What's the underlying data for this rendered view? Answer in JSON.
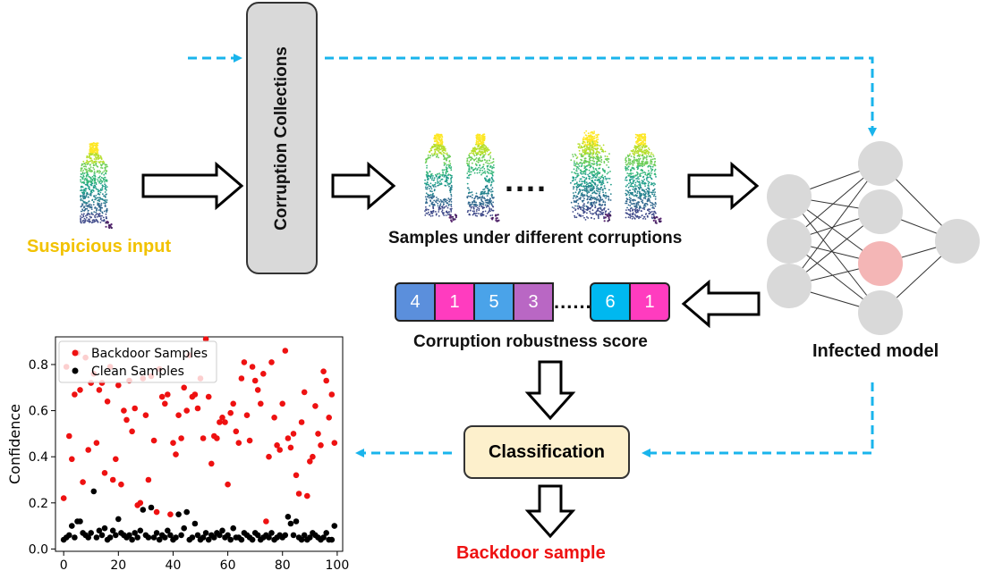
{
  "labels": {
    "suspicious_input": "Suspicious input",
    "corruption_collections": "Corruption Collections",
    "samples_caption": "Samples under different corruptions",
    "infected_model": "Infected model",
    "robustness_caption": "Corruption robustness score",
    "classification": "Classification",
    "backdoor_sample": "Backdoor sample",
    "ellipsis_big": "....",
    "ellipsis_small": "......"
  },
  "scores": [
    {
      "value": "4",
      "color": "#5b8fdc"
    },
    {
      "value": "1",
      "color": "#ff3cbf"
    },
    {
      "value": "5",
      "color": "#4aa3e9"
    },
    {
      "value": "3",
      "color": "#b967c4"
    },
    {
      "value": "6",
      "color": "#00b8f0"
    },
    {
      "value": "1",
      "color": "#ff3cbf"
    }
  ],
  "colors": {
    "suspicious": "#f2c200",
    "backdoor": "#ee1111",
    "dashed_arrow": "#19b4ec",
    "neuron": "#d9d9d9",
    "neuron_infected": "#f4b6b6"
  },
  "chart_data": {
    "type": "scatter",
    "ylabel": "Confidence",
    "xlabel": "",
    "xlim": [
      -3,
      102
    ],
    "ylim": [
      -0.01,
      0.92
    ],
    "xticks": [
      0,
      20,
      40,
      60,
      80,
      100
    ],
    "yticks": [
      0.0,
      0.2,
      0.4,
      0.6,
      0.8
    ],
    "legend_position": "top-left",
    "series": [
      {
        "name": "Backdoor Samples",
        "color": "#ee1111",
        "x": [
          0,
          1,
          2,
          3,
          4,
          5,
          6,
          7,
          8,
          9,
          10,
          11,
          12,
          13,
          14,
          15,
          16,
          17,
          18,
          19,
          20,
          21,
          22,
          23,
          24,
          25,
          26,
          27,
          28,
          29,
          30,
          31,
          32,
          33,
          34,
          35,
          36,
          37,
          38,
          39,
          40,
          41,
          42,
          43,
          44,
          45,
          46,
          47,
          48,
          49,
          50,
          51,
          52,
          53,
          54,
          55,
          56,
          57,
          58,
          59,
          60,
          61,
          62,
          63,
          64,
          65,
          66,
          67,
          68,
          69,
          70,
          71,
          72,
          73,
          74,
          75,
          76,
          77,
          78,
          79,
          80,
          81,
          82,
          83,
          84,
          85,
          86,
          87,
          88,
          89,
          90,
          91,
          92,
          93,
          94,
          95,
          96,
          97,
          98,
          99
        ],
        "y": [
          0.22,
          0.79,
          0.49,
          0.39,
          0.67,
          0.85,
          0.69,
          0.29,
          0.83,
          0.43,
          0.72,
          0.76,
          0.46,
          0.69,
          0.72,
          0.33,
          0.64,
          0.79,
          0.3,
          0.39,
          0.71,
          0.28,
          0.6,
          0.56,
          0.73,
          0.51,
          0.61,
          0.19,
          0.2,
          0.74,
          0.58,
          0.3,
          0.75,
          0.47,
          0.16,
          0.78,
          0.66,
          0.63,
          0.67,
          0.15,
          0.46,
          0.41,
          0.58,
          0.48,
          0.7,
          0.6,
          0.84,
          0.66,
          0.67,
          0.61,
          0.74,
          0.48,
          0.91,
          0.66,
          0.37,
          0.49,
          0.48,
          0.55,
          0.57,
          0.55,
          0.28,
          0.59,
          0.63,
          0.51,
          0.46,
          0.74,
          0.81,
          0.58,
          0.47,
          0.79,
          0.73,
          0.69,
          0.63,
          0.76,
          0.12,
          0.4,
          0.81,
          0.57,
          0.45,
          0.43,
          0.63,
          0.86,
          0.48,
          0.44,
          0.5,
          0.32,
          0.24,
          0.55,
          0.68,
          0.23,
          0.38,
          0.4,
          0.62,
          0.5,
          0.45,
          0.77,
          0.73,
          0.57,
          0.67,
          0.46
        ]
      },
      {
        "name": "Clean Samples",
        "color": "#000000",
        "x": [
          0,
          1,
          2,
          3,
          4,
          5,
          6,
          7,
          8,
          9,
          10,
          11,
          12,
          13,
          14,
          15,
          16,
          17,
          18,
          19,
          20,
          21,
          22,
          23,
          24,
          25,
          26,
          27,
          28,
          29,
          30,
          31,
          32,
          33,
          34,
          35,
          36,
          37,
          38,
          39,
          40,
          41,
          42,
          43,
          44,
          45,
          46,
          47,
          48,
          49,
          50,
          51,
          52,
          53,
          54,
          55,
          56,
          57,
          58,
          59,
          60,
          61,
          62,
          63,
          64,
          65,
          66,
          67,
          68,
          69,
          70,
          71,
          72,
          73,
          74,
          75,
          76,
          77,
          78,
          79,
          80,
          81,
          82,
          83,
          84,
          85,
          86,
          87,
          88,
          89,
          90,
          91,
          92,
          93,
          94,
          95,
          96,
          97,
          98,
          99
        ],
        "y": [
          0.04,
          0.05,
          0.06,
          0.1,
          0.05,
          0.12,
          0.12,
          0.07,
          0.06,
          0.05,
          0.07,
          0.25,
          0.05,
          0.08,
          0.06,
          0.09,
          0.04,
          0.05,
          0.08,
          0.06,
          0.13,
          0.07,
          0.06,
          0.05,
          0.06,
          0.04,
          0.07,
          0.05,
          0.08,
          0.17,
          0.06,
          0.05,
          0.18,
          0.05,
          0.07,
          0.04,
          0.06,
          0.05,
          0.08,
          0.06,
          0.04,
          0.05,
          0.15,
          0.06,
          0.09,
          0.16,
          0.04,
          0.05,
          0.11,
          0.06,
          0.04,
          0.05,
          0.07,
          0.04,
          0.06,
          0.05,
          0.07,
          0.06,
          0.08,
          0.05,
          0.06,
          0.04,
          0.09,
          0.05,
          0.05,
          0.04,
          0.07,
          0.06,
          0.05,
          0.04,
          0.07,
          0.06,
          0.04,
          0.05,
          0.06,
          0.05,
          0.07,
          0.04,
          0.05,
          0.06,
          0.05,
          0.06,
          0.14,
          0.11,
          0.06,
          0.12,
          0.05,
          0.04,
          0.06,
          0.04,
          0.05,
          0.07,
          0.06,
          0.05,
          0.04,
          0.05,
          0.07,
          0.04,
          0.04,
          0.1
        ]
      }
    ]
  }
}
